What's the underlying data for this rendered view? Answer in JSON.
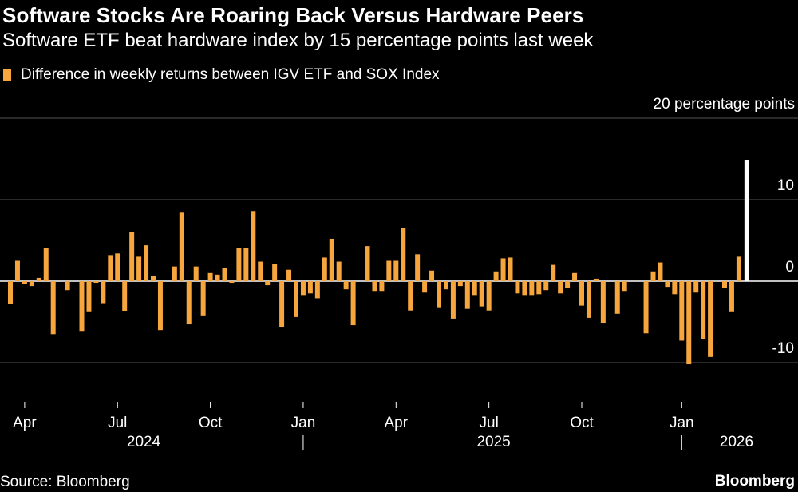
{
  "title": "Software Stocks Are Roaring Back Versus Hardware Peers",
  "subtitle": "Software ETF beat hardware index by 15 percentage points last week",
  "source": "Source: Bloomberg",
  "brand": "Bloomberg",
  "colors": {
    "positive_bar": "#f6a63c",
    "negative_bar": "#f6a63c",
    "highlight_bar": "#ffffff",
    "grid": "#555555",
    "zero_line": "#ffffff"
  },
  "chart_data": {
    "type": "bar",
    "title": "Software Stocks Are Roaring Back Versus Hardware Peers",
    "subtitle": "Software ETF beat hardware index by 15 percentage points last week",
    "unit_label": "20 percentage points",
    "ylim": [
      -13,
      22
    ],
    "yticks": [
      20,
      10,
      0,
      -10
    ],
    "ytick_labels": [
      "",
      "10",
      "0",
      "-10"
    ],
    "grid": true,
    "legend_position": "top-left",
    "series": [
      {
        "name": "Difference in weekly returns between IGV ETF and SOX Index",
        "values": [
          -2.8,
          2.5,
          -0.3,
          -0.6,
          0.4,
          4.1,
          -6.5,
          0,
          -1.1,
          0,
          -6.2,
          -3.8,
          -0.2,
          -2.7,
          3.2,
          3.4,
          -3.7,
          6.0,
          3.0,
          4.4,
          0.6,
          -6.0,
          0,
          1.8,
          8.4,
          -5.3,
          1.8,
          -4.3,
          1.0,
          0.8,
          1.6,
          -0.2,
          4.1,
          4.1,
          8.6,
          2.4,
          -0.5,
          2.1,
          -5.6,
          1.4,
          -4.4,
          -1.7,
          -1.5,
          -2.1,
          2.9,
          5.2,
          2.4,
          -1.0,
          -5.4,
          0,
          4.3,
          -1.2,
          -1.2,
          2.5,
          2.5,
          6.5,
          -3.6,
          3.3,
          -1.4,
          1.3,
          -3.2,
          -1.0,
          -4.6,
          -0.6,
          -3.4,
          -1.7,
          -3.1,
          -3.6,
          1.2,
          2.8,
          2.9,
          -1.5,
          -1.7,
          -1.7,
          -1.6,
          -1.1,
          2.0,
          -1.5,
          -0.8,
          1.0,
          -3.0,
          -4.5,
          0.3,
          -5.2,
          0,
          -4.0,
          -1.2,
          0,
          0,
          -6.4,
          1.2,
          2.3,
          -0.7,
          -1.6,
          -7.3,
          -10.2,
          -1.4,
          -7.1,
          -9.3,
          0,
          -0.8,
          -3.8,
          3.0,
          14.9
        ]
      }
    ],
    "highlight_last": true,
    "x_month_labels": [
      "Apr",
      "Jul",
      "Oct",
      "Jan",
      "Apr",
      "Jul",
      "Oct",
      "Jan"
    ],
    "x_month_week_index": [
      2,
      15,
      28,
      41,
      54,
      67,
      80,
      94
    ],
    "x_year_labels": [
      "2024",
      "2025",
      "2026"
    ],
    "x_year_label_week_index": [
      19,
      68,
      102
    ],
    "x_year_divider_week_index": [
      41,
      94
    ]
  }
}
